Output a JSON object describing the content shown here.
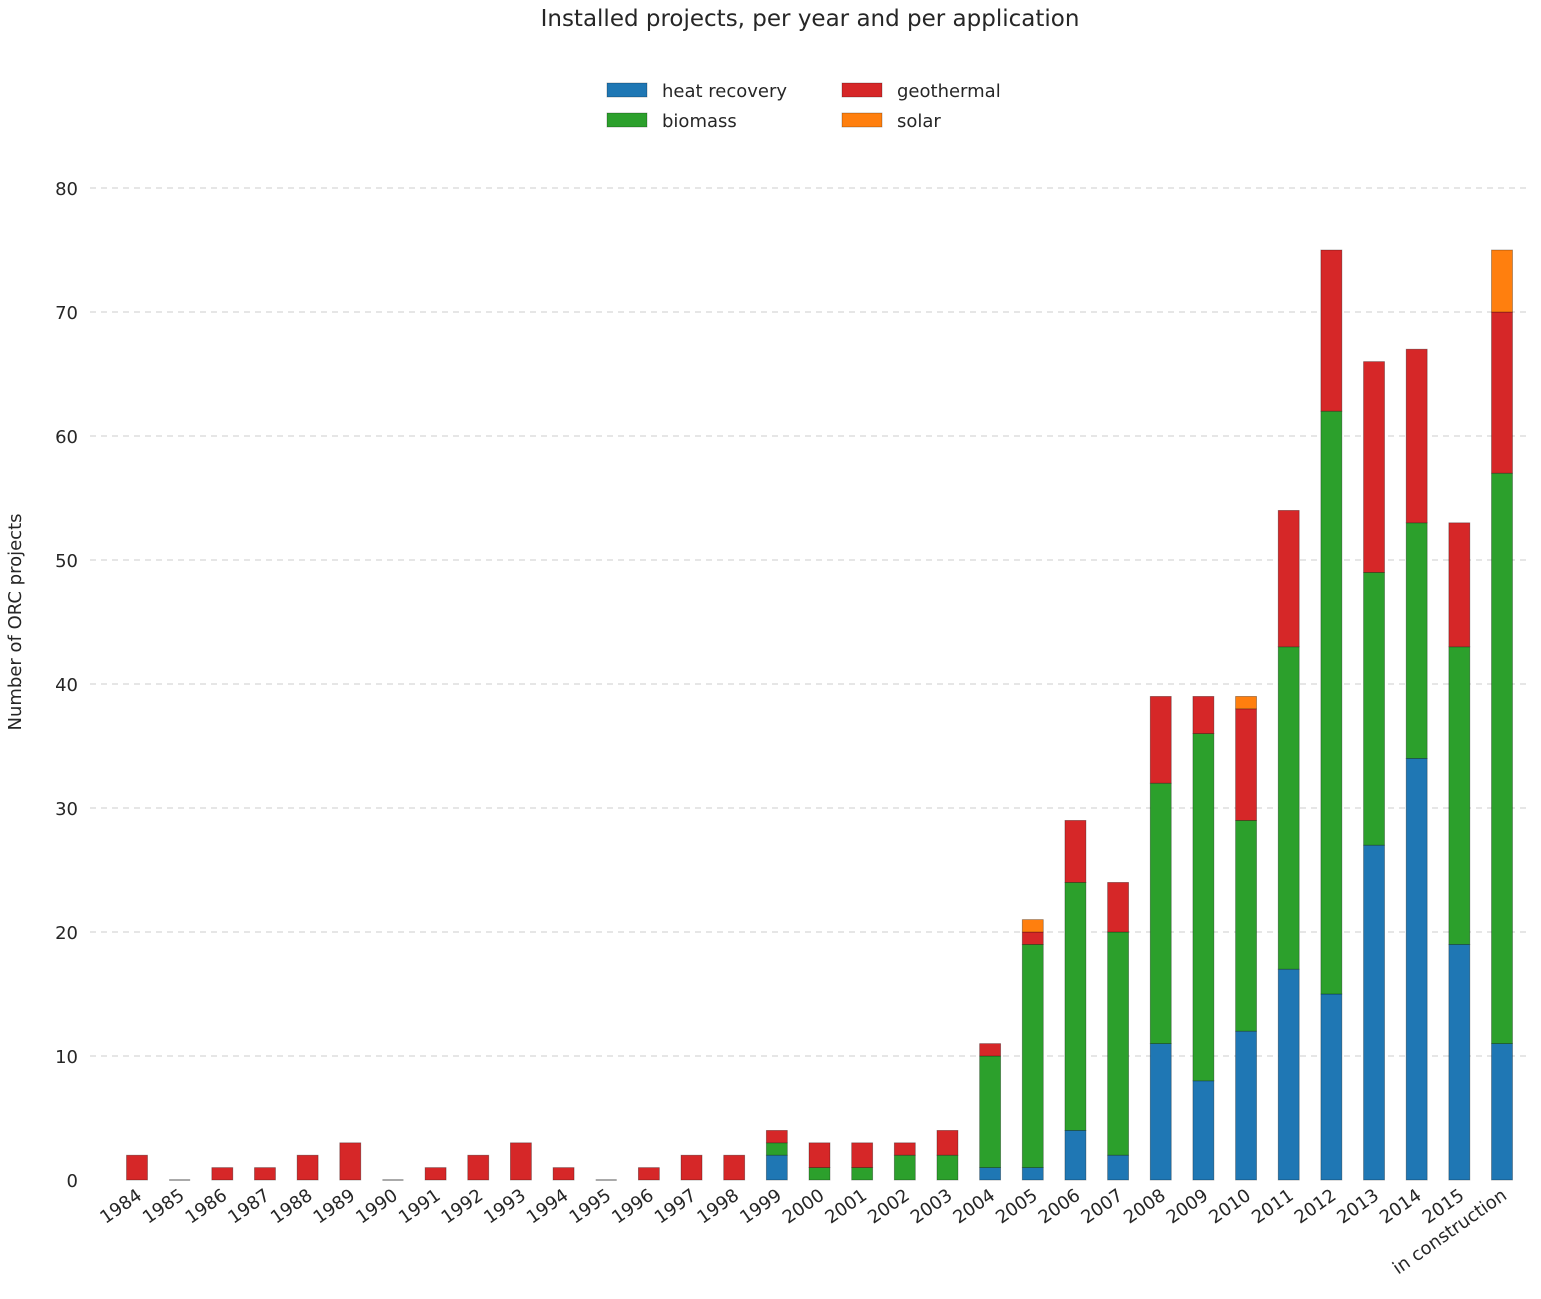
{
  "chart_data": {
    "type": "bar",
    "stacked": true,
    "title": "Installed projects, per year and per application",
    "xlabel": "",
    "ylabel": "Number of ORC projects",
    "ylim": [
      0,
      80
    ],
    "yticks": [
      0,
      10,
      20,
      30,
      40,
      50,
      60,
      70,
      80
    ],
    "grid": "horizontal dashed",
    "legend_position": "top-center",
    "categories": [
      "1984",
      "1985",
      "1986",
      "1987",
      "1988",
      "1989",
      "1990",
      "1991",
      "1992",
      "1993",
      "1994",
      "1995",
      "1996",
      "1997",
      "1998",
      "1999",
      "2000",
      "2001",
      "2002",
      "2003",
      "2004",
      "2005",
      "2006",
      "2007",
      "2008",
      "2009",
      "2010",
      "2011",
      "2012",
      "2013",
      "2014",
      "2015",
      "in construction"
    ],
    "series": [
      {
        "name": "heat recovery",
        "color": "#1f77b4",
        "values": [
          0,
          0,
          0,
          0,
          0,
          0,
          0,
          0,
          0,
          0,
          0,
          0,
          0,
          0,
          0,
          2,
          0,
          0,
          0,
          0,
          1,
          1,
          4,
          2,
          11,
          8,
          12,
          17,
          15,
          27,
          34,
          19,
          11
        ]
      },
      {
        "name": "biomass",
        "color": "#2ca02c",
        "values": [
          0,
          0,
          0,
          0,
          0,
          0,
          0,
          0,
          0,
          0,
          0,
          0,
          0,
          0,
          0,
          1,
          1,
          1,
          2,
          2,
          9,
          18,
          20,
          18,
          21,
          28,
          17,
          26,
          47,
          22,
          19,
          24,
          46
        ]
      },
      {
        "name": "geothermal",
        "color": "#d62728",
        "values": [
          2,
          0,
          1,
          1,
          2,
          3,
          0,
          1,
          2,
          3,
          1,
          0,
          1,
          2,
          2,
          1,
          2,
          2,
          1,
          2,
          1,
          1,
          5,
          4,
          7,
          3,
          9,
          11,
          13,
          17,
          14,
          10,
          13
        ]
      },
      {
        "name": "solar",
        "color": "#ff7f0e",
        "values": [
          0,
          0,
          0,
          0,
          0,
          0,
          0,
          0,
          0,
          0,
          0,
          0,
          0,
          0,
          0,
          0,
          0,
          0,
          0,
          0,
          0,
          1,
          0,
          0,
          0,
          0,
          1,
          0,
          0,
          0,
          0,
          0,
          5
        ]
      }
    ],
    "legend_order": [
      0,
      2,
      1,
      3
    ]
  }
}
